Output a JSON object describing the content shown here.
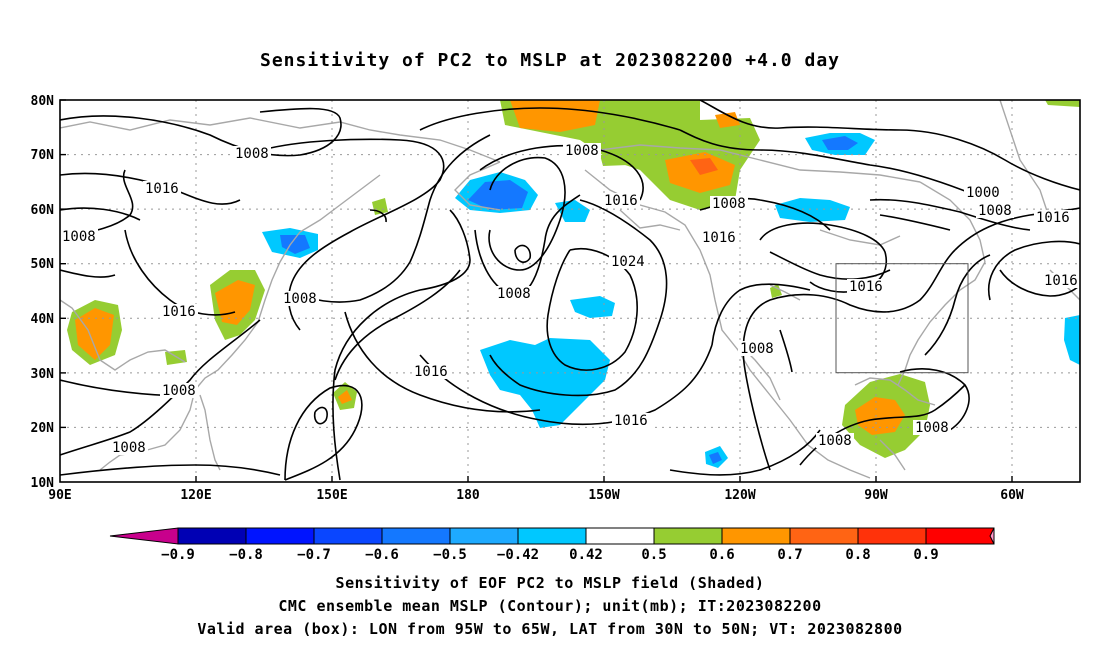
{
  "title": "Sensitivity of PC2 to MSLP at 2023082200 +4.0 day",
  "lat_labels": [
    "80N",
    "70N",
    "60N",
    "50N",
    "40N",
    "30N",
    "20N",
    "10N"
  ],
  "lon_labels": [
    "90E",
    "120E",
    "150E",
    "180",
    "150W",
    "120W",
    "90W",
    "60W"
  ],
  "isobar_labels": [
    {
      "text": "1008"
    },
    {
      "text": "1016"
    },
    {
      "text": "1008"
    },
    {
      "text": "1016"
    },
    {
      "text": "1008"
    },
    {
      "text": "1008"
    },
    {
      "text": "1008"
    },
    {
      "text": "1008"
    },
    {
      "text": "1016"
    },
    {
      "text": "1024"
    },
    {
      "text": "1008"
    },
    {
      "text": "1016"
    },
    {
      "text": "1016"
    },
    {
      "text": "1016"
    },
    {
      "text": "1008"
    },
    {
      "text": "1016"
    },
    {
      "text": "1008"
    },
    {
      "text": "1000"
    },
    {
      "text": "1008"
    },
    {
      "text": "1016"
    },
    {
      "text": "1016"
    },
    {
      "text": "1008"
    },
    {
      "text": "1008"
    }
  ],
  "colorbar": {
    "colors": [
      "#c8008c",
      "#0000b4",
      "#0014ff",
      "#0a46ff",
      "#1478ff",
      "#1eaaff",
      "#00c8ff",
      "#ffffff",
      "#96cd32",
      "#ff9600",
      "#ff6414",
      "#ff320a",
      "#ff0000",
      "#ff96c8"
    ],
    "labels": [
      "−0.9",
      "−0.8",
      "−0.7",
      "−0.6",
      "−0.5",
      "−0.42",
      "0.42",
      "0.5",
      "0.6",
      "0.7",
      "0.8",
      "0.9"
    ]
  },
  "captions": {
    "line1": "Sensitivity of EOF PC2 to MSLP field (Shaded)",
    "line2": "CMC ensemble mean MSLP (Contour); unit(mb); IT:2023082200",
    "line3": "Valid area (box): LON from 95W to 65W, LAT from 30N to 50N; VT: 2023082800"
  }
}
